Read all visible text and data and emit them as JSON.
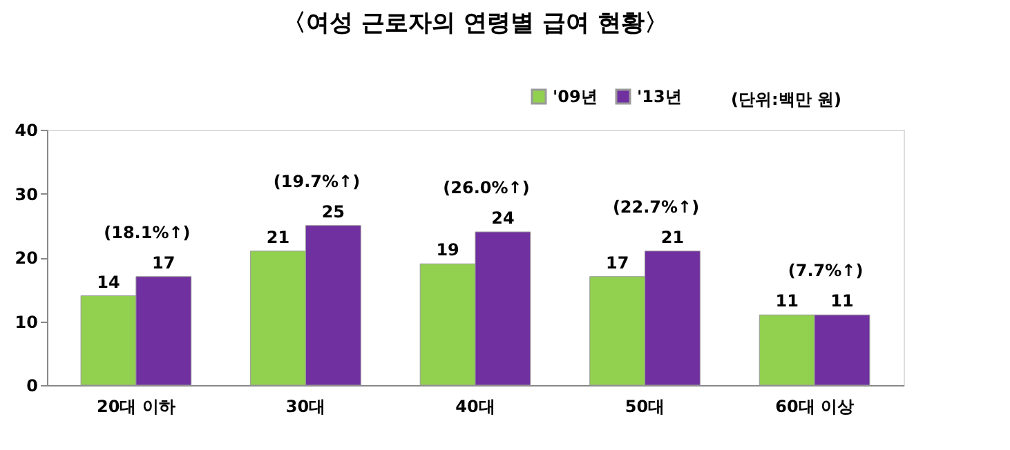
{
  "chart_data": {
    "type": "bar",
    "title": "〈여성 근로자의 연령별 급여 현황〉",
    "categories": [
      "20대 이하",
      "30대",
      "40대",
      "50대",
      "60대 이상"
    ],
    "series": [
      {
        "name": "'09년",
        "color": "#92d050",
        "values": [
          14,
          21,
          19,
          17,
          11
        ]
      },
      {
        "name": "'13년",
        "color": "#7030a0",
        "values": [
          17,
          25,
          24,
          21,
          11
        ]
      }
    ],
    "ylim": [
      0,
      40
    ],
    "yticks": [
      0,
      10,
      20,
      30,
      40
    ],
    "grid": false,
    "legend": "top right",
    "data_labels": true,
    "annotations": [
      "(단위:백만 원)",
      "(18.1%↑)",
      "(19.7%↑)",
      "(26.0%↑)",
      "(22.7%↑)",
      "(7.7%↑)"
    ]
  }
}
